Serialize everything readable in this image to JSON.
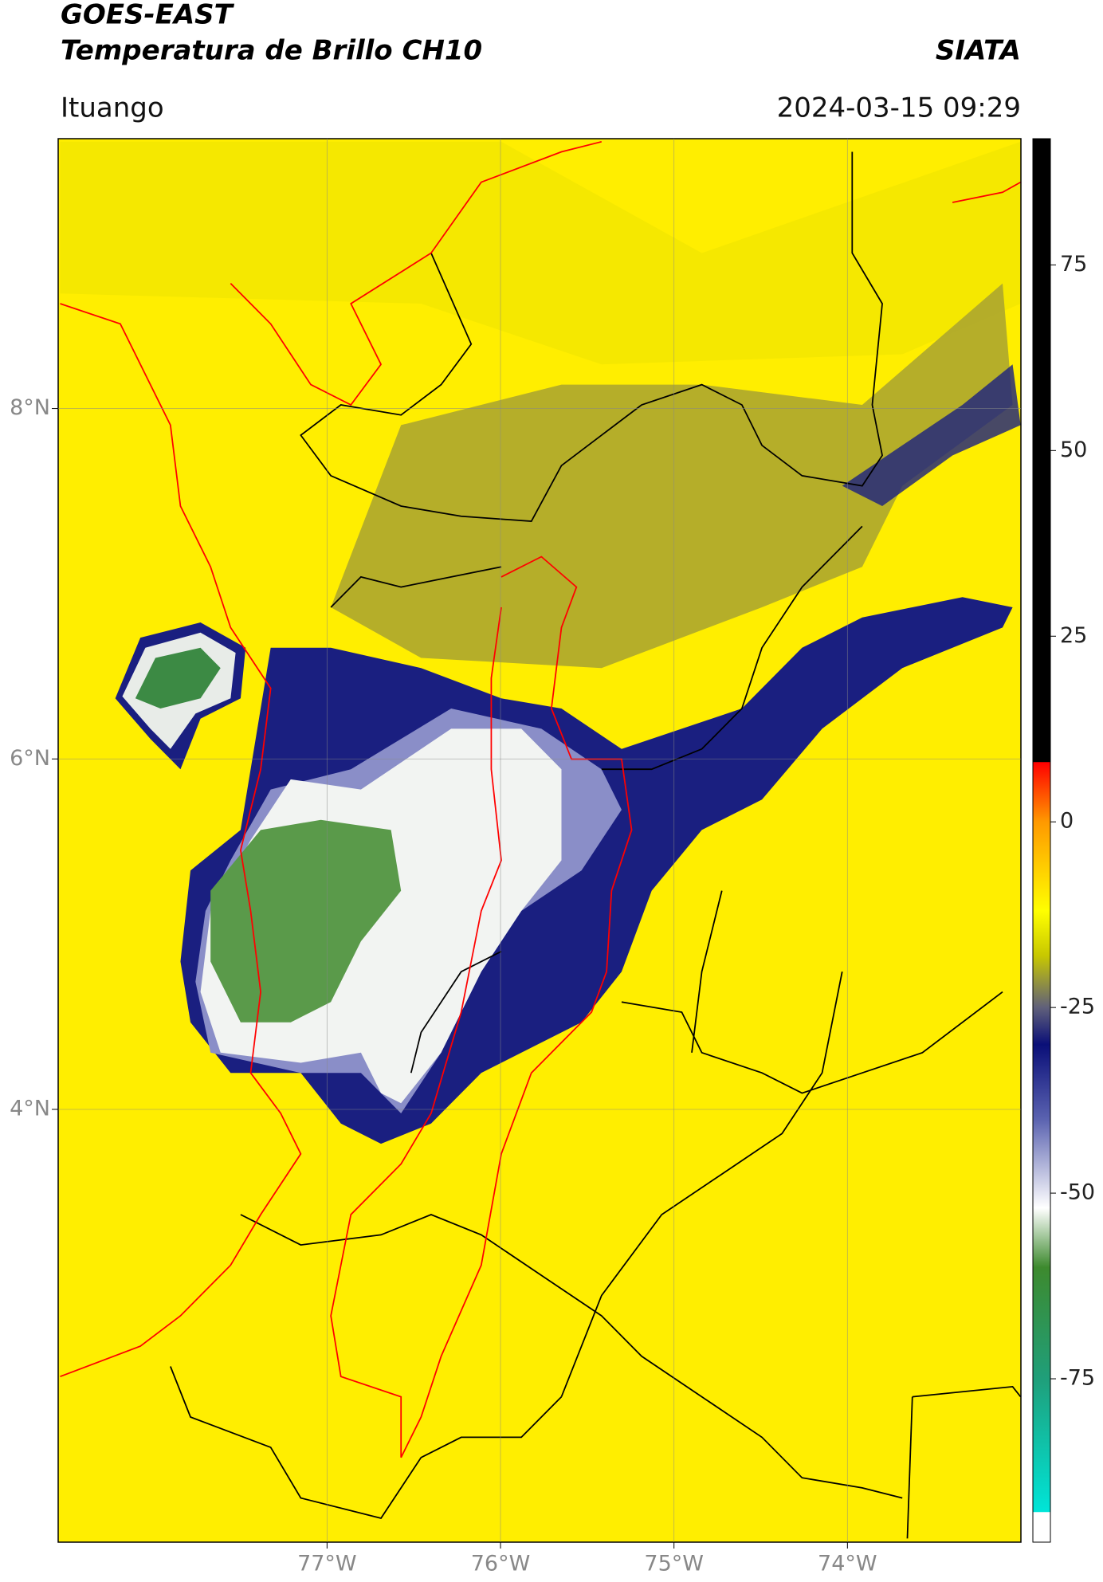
{
  "header": {
    "satellite": "GOES-EAST",
    "product": "Temperatura de Brillo CH10",
    "brand": "SIATA",
    "region": "Ituango",
    "timestamp": "2024-03-15 09:29"
  },
  "map": {
    "xlim": [
      -78.55,
      -73.0
    ],
    "ylim": [
      1.53,
      9.54
    ],
    "lat_ticks": [
      {
        "value": 8,
        "label": "8°N"
      },
      {
        "value": 6,
        "label": "6°N"
      },
      {
        "value": 4,
        "label": "4°N"
      }
    ],
    "lon_ticks": [
      {
        "value": -77,
        "label": "77°W"
      },
      {
        "value": -76,
        "label": "76°W"
      },
      {
        "value": -75,
        "label": "75°W"
      },
      {
        "value": -74,
        "label": "74°W"
      }
    ]
  },
  "colorbar": {
    "lim": [
      -97,
      92
    ],
    "ticks": [
      75,
      50,
      25,
      0,
      -25,
      -50,
      -75
    ],
    "colormap": [
      {
        "value": -97,
        "color": "#ffffff"
      },
      {
        "value": -93,
        "color": "#ffffff"
      },
      {
        "value": -92.9,
        "color": "#00e5d8"
      },
      {
        "value": -75,
        "color": "#1f9f7a"
      },
      {
        "value": -60,
        "color": "#3d8a2e"
      },
      {
        "value": -52,
        "color": "#ffffff"
      },
      {
        "value": -40,
        "color": "#5a62b0"
      },
      {
        "value": -30,
        "color": "#0a0f78"
      },
      {
        "value": -25,
        "color": "#60607a"
      },
      {
        "value": -18,
        "color": "#c8c800"
      },
      {
        "value": -12,
        "color": "#ffff00"
      },
      {
        "value": 0,
        "color": "#ff9900"
      },
      {
        "value": 8,
        "color": "#ff0000"
      },
      {
        "value": 8.1,
        "color": "#000000"
      },
      {
        "value": 92,
        "color": "#000000"
      }
    ]
  }
}
